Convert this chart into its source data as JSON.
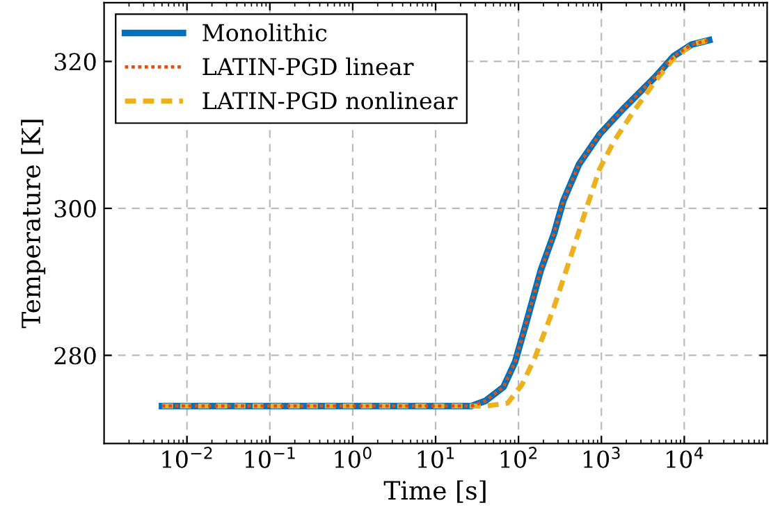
{
  "chart_data": {
    "type": "line",
    "xlabel": "Time [s]",
    "ylabel": "Temperature [K]",
    "log": "x",
    "xlim": [
      0.001,
      100000
    ],
    "ylim": [
      268,
      328
    ],
    "xticks": [
      {
        "value": 0.01,
        "label": "10$^{−2}$"
      },
      {
        "value": 0.1,
        "label": "10$^{−1}$"
      },
      {
        "value": 1,
        "label": "10$^{0}$"
      },
      {
        "value": 10,
        "label": "10$^{1}$"
      },
      {
        "value": 100,
        "label": "10$^{2}$"
      },
      {
        "value": 1000,
        "label": "10$^{3}$"
      },
      {
        "value": 10000,
        "label": "10$^{4}$"
      }
    ],
    "yticks": [
      280,
      300,
      320
    ],
    "grid": true,
    "legend": "top left",
    "series": [
      {
        "name": "Monolithic",
        "color": "#0072bd",
        "line_style": "solid",
        "x": [
          0.005,
          1,
          27,
          40,
          66,
          91,
          126,
          186,
          269,
          347,
          537,
          955,
          1820,
          4467,
          7413,
          12300,
          20000
        ],
        "values": [
          273.1,
          273.1,
          273.1,
          273.8,
          275.7,
          279.1,
          284.7,
          291.6,
          296.6,
          301.0,
          306.0,
          310.1,
          313.5,
          317.9,
          320.7,
          322.3,
          322.9
        ]
      },
      {
        "name": "LATIN-PGD linear",
        "color": "#d95319",
        "line_style": "dotted",
        "x": [
          0.005,
          1,
          27,
          40,
          66,
          91,
          126,
          186,
          269,
          347,
          537,
          955,
          1820,
          4467,
          7413,
          12300,
          20000
        ],
        "values": [
          273.1,
          273.1,
          273.1,
          273.8,
          275.7,
          279.1,
          284.7,
          291.6,
          296.6,
          301.0,
          306.0,
          310.1,
          313.5,
          317.9,
          320.7,
          322.3,
          322.9
        ]
      },
      {
        "name": "LATIN-PGD nonlinear",
        "color": "#edb120",
        "line_style": "dashed",
        "x": [
          0.005,
          1,
          40,
          74,
          110,
          158,
          269,
          447,
          646,
          955,
          1413,
          2344,
          4467,
          7413,
          12300,
          20000
        ],
        "values": [
          273.1,
          273.1,
          273.1,
          273.5,
          276.0,
          279.7,
          286.6,
          294.1,
          299.7,
          305.4,
          309.1,
          312.9,
          317.3,
          320.4,
          322.3,
          322.9
        ]
      }
    ]
  }
}
